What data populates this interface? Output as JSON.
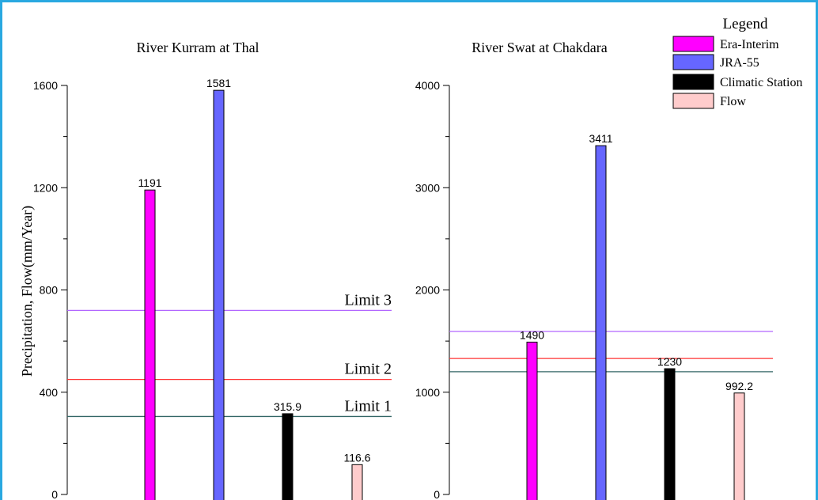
{
  "y_axis_label": "Precipitation, Flow(mm/Year)",
  "legend": {
    "title": "Legend",
    "items": [
      {
        "label": "Era-Interim",
        "color": "#ff00ff"
      },
      {
        "label": "JRA-55",
        "color": "#6666ff"
      },
      {
        "label": "Climatic Station",
        "color": "#000000"
      },
      {
        "label": "Flow",
        "color": "#ffcccc"
      }
    ]
  },
  "chart_data": [
    {
      "type": "bar",
      "title": "River Kurram at Thal",
      "ylabel": "Precipitation, Flow(mm/Year)",
      "ylim": [
        0,
        1600
      ],
      "yticks": [
        0,
        400,
        800,
        1200,
        1600
      ],
      "categories": [
        "Era-Interim",
        "JRA-55",
        "Climatic Station",
        "Flow"
      ],
      "values": [
        1191,
        1581,
        315.9,
        116.6
      ],
      "value_labels": [
        "1191",
        "1581",
        "315.9",
        "116.6"
      ],
      "colors": [
        "#ff00ff",
        "#6666ff",
        "#000000",
        "#ffcccc"
      ],
      "reference_lines": [
        {
          "label": "Limit 3",
          "value": 720,
          "color": "#b266ff"
        },
        {
          "label": "Limit 2",
          "value": 450,
          "color": "#ff3333"
        },
        {
          "label": "Limit 1",
          "value": 305,
          "color": "#336666"
        }
      ]
    },
    {
      "type": "bar",
      "title": "River Swat at Chakdara",
      "ylim": [
        0,
        4000
      ],
      "yticks": [
        0,
        1000,
        2000,
        3000,
        4000
      ],
      "categories": [
        "Era-Interim",
        "JRA-55",
        "Climatic Station",
        "Flow"
      ],
      "values": [
        1490,
        3411,
        1230,
        992.2
      ],
      "value_labels": [
        "1490",
        "3411",
        "1230",
        "992.2"
      ],
      "colors": [
        "#ff00ff",
        "#6666ff",
        "#000000",
        "#ffcccc"
      ],
      "reference_lines": [
        {
          "value": 1595,
          "color": "#b266ff"
        },
        {
          "value": 1330,
          "color": "#ff3333"
        },
        {
          "value": 1200,
          "color": "#336666"
        }
      ]
    }
  ]
}
